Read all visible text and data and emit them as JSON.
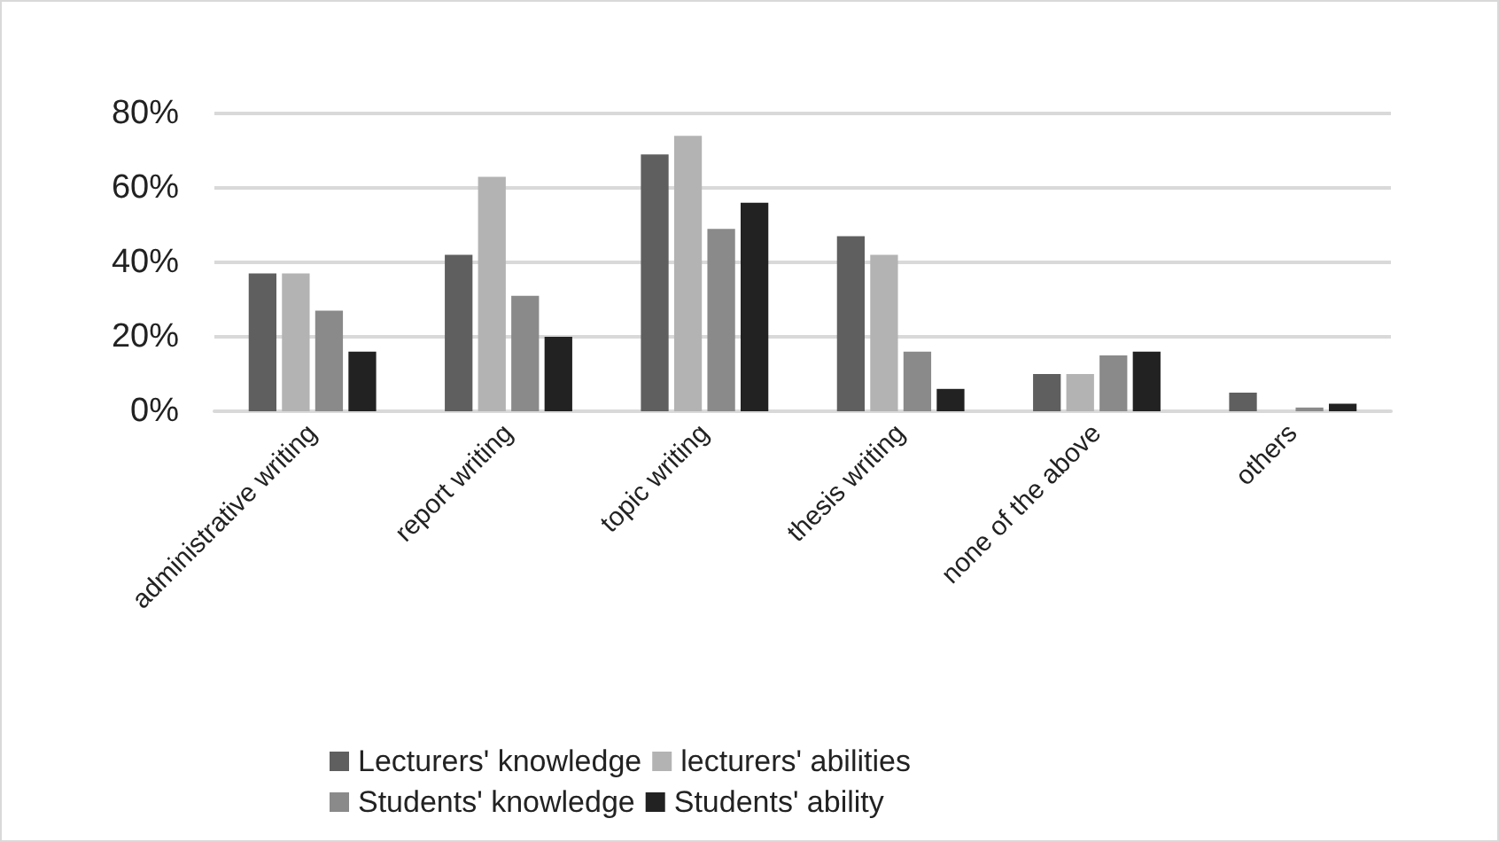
{
  "chart_data": {
    "type": "bar",
    "categories": [
      "administrative writing",
      "report writing",
      "topic writing",
      "thesis writing",
      "none of the above",
      "others"
    ],
    "series": [
      {
        "name": "Lecturers' knowledge",
        "color": "#5f5f5f",
        "values": [
          37,
          42,
          69,
          47,
          10,
          5
        ]
      },
      {
        "name": "lecturers' abilities",
        "color": "#b3b3b3",
        "values": [
          37,
          63,
          74,
          42,
          10,
          0
        ]
      },
      {
        "name": "Students' knowledge",
        "color": "#8a8a8a",
        "values": [
          27,
          31,
          49,
          16,
          15,
          1
        ]
      },
      {
        "name": "Students' ability",
        "color": "#222222",
        "values": [
          16,
          20,
          56,
          6,
          16,
          2
        ]
      }
    ],
    "ylim": [
      0,
      80
    ],
    "yticks": [
      {
        "value": 0,
        "label": "0%"
      },
      {
        "value": 20,
        "label": "20%"
      },
      {
        "value": 40,
        "label": "40%"
      },
      {
        "value": 60,
        "label": "60%"
      },
      {
        "value": 80,
        "label": "80%"
      }
    ],
    "grid": "y",
    "legend": "bottom"
  }
}
